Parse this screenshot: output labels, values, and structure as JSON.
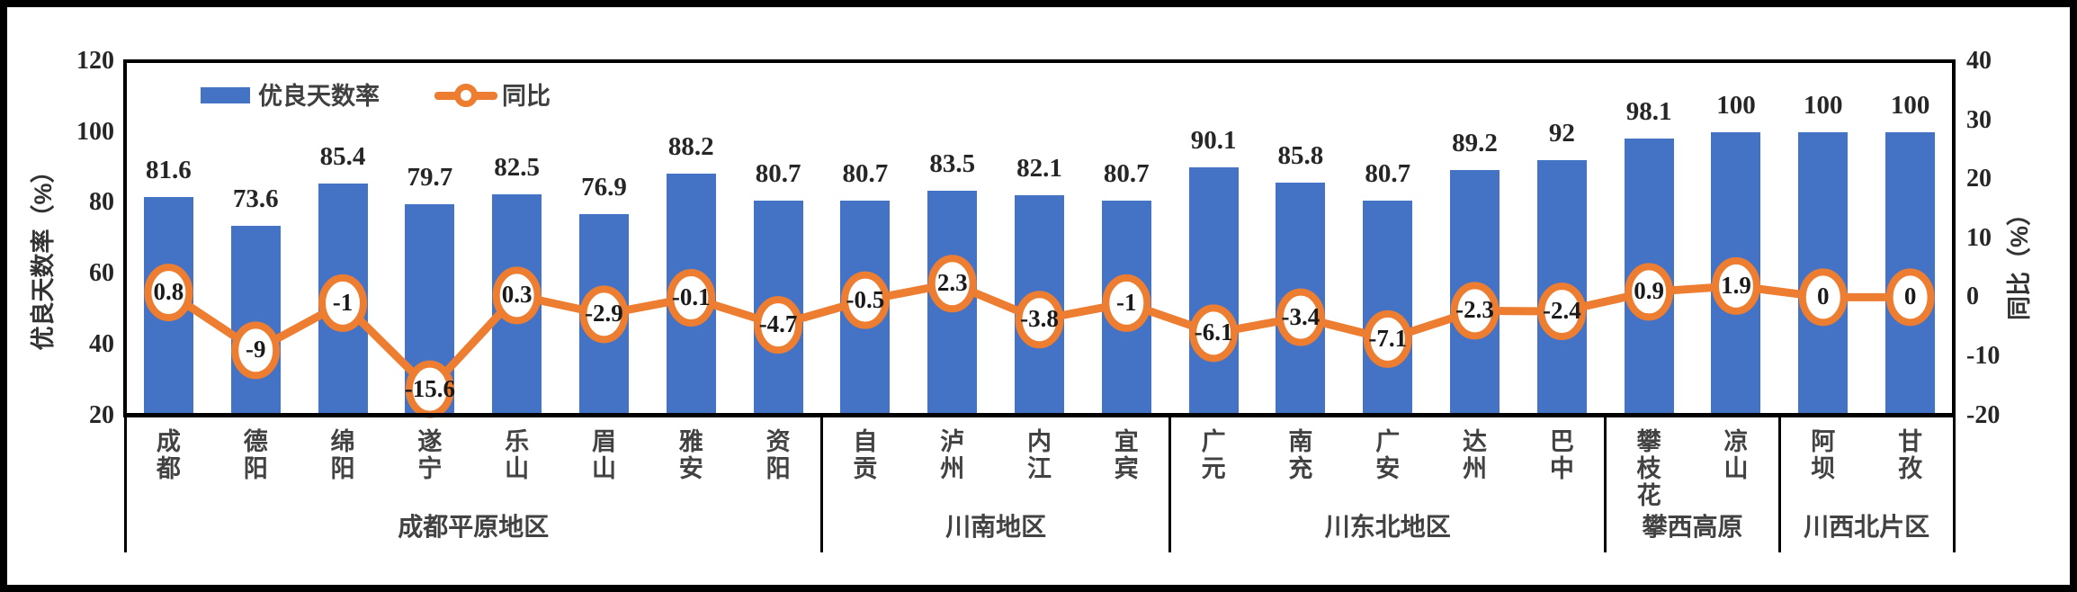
{
  "chart_data": {
    "type": "combo",
    "title": "",
    "categories": [
      "成都",
      "德阳",
      "绵阳",
      "遂宁",
      "乐山",
      "眉山",
      "雅安",
      "资阳",
      "自贡",
      "泸州",
      "内江",
      "宜宾",
      "广元",
      "南充",
      "广安",
      "达州",
      "巴中",
      "攀枝花",
      "凉山",
      "阿坝",
      "甘孜"
    ],
    "series": [
      {
        "name": "优良天数率",
        "type": "bar",
        "axis": "left",
        "color": "#4472C4",
        "values": [
          81.6,
          73.6,
          85.4,
          79.7,
          82.5,
          76.9,
          88.2,
          80.7,
          80.7,
          83.5,
          82.1,
          80.7,
          90.1,
          85.8,
          80.7,
          89.2,
          92,
          98.1,
          100,
          100,
          100
        ]
      },
      {
        "name": "同比",
        "type": "line",
        "axis": "right",
        "color": "#ED7D31",
        "marker": "circle",
        "values": [
          0.8,
          -9,
          -1,
          -15.6,
          0.3,
          -2.9,
          -0.1,
          -4.7,
          -0.5,
          2.3,
          -3.8,
          -1,
          -6.1,
          -3.4,
          -7.1,
          -2.3,
          -2.4,
          0.9,
          1.9,
          0,
          0
        ]
      }
    ],
    "groups": [
      {
        "label": "成都平原地区",
        "span": 8
      },
      {
        "label": "川南地区",
        "span": 4
      },
      {
        "label": "川东北地区",
        "span": 5
      },
      {
        "label": "攀西高原",
        "span": 2
      },
      {
        "label": "川西北片区",
        "span": 2
      }
    ],
    "left_axis": {
      "title": "优良天数率（%）",
      "min": 20,
      "max": 120,
      "ticks": [
        120,
        100,
        80,
        60,
        40,
        20
      ]
    },
    "right_axis": {
      "title": "同比（%）",
      "min": -20,
      "max": 40,
      "ticks": [
        40,
        30,
        20,
        10,
        0,
        -10,
        -20
      ]
    },
    "legend_position": "top",
    "grid": false,
    "colors": {
      "bar": "#4472C4",
      "line": "#ED7D31",
      "marker_fill": "#FFFFFF"
    }
  }
}
